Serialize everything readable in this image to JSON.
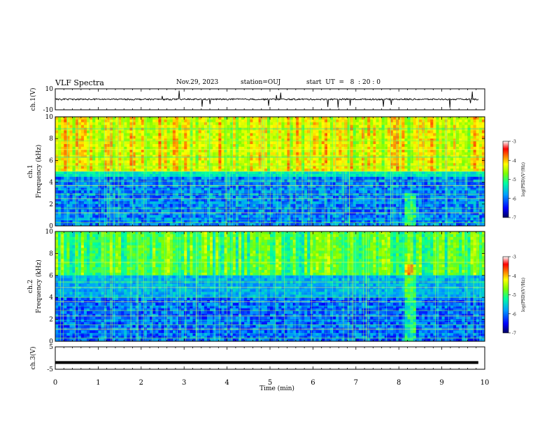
{
  "header": {
    "title": "VLF Spectra",
    "date": "Nov.29, 2023",
    "station": "station=OUJ",
    "start": "start  UT  =   8  : 20 : 0"
  },
  "chart_data": [
    {
      "type": "line",
      "panel": "ch1-waveform",
      "ylabel": "ch.1(V)",
      "ylim": [
        -10,
        10
      ],
      "yticks": [
        "10",
        "-10"
      ],
      "baseline": 0,
      "color": "#000000"
    },
    {
      "type": "heatmap",
      "panel": "ch1-spectrogram",
      "ylabel": "ch.1\nFrequency (kHz)",
      "ylabel_line1": "ch.1",
      "ylabel_line2": "Frequency (kHz)",
      "xlim": [
        0,
        10
      ],
      "ylim": [
        0,
        10
      ],
      "yticks": [
        "0",
        "2",
        "4",
        "6",
        "8",
        "10"
      ],
      "colorbar": {
        "label": "log(PSD)(V²/Hz)",
        "range": [
          -7,
          -3
        ],
        "ticks": [
          "-3",
          "-4",
          "-5",
          "-6",
          "-7"
        ],
        "colormap": [
          "#000080",
          "#0000ff",
          "#00c0ff",
          "#00ff80",
          "#c0ff00",
          "#ffff00",
          "#ff8000",
          "#ff0000",
          "#ffffff"
        ]
      }
    },
    {
      "type": "heatmap",
      "panel": "ch2-spectrogram",
      "ylabel": "ch.2\nFrequency (kHz)",
      "ylabel_line1": "ch.2",
      "ylabel_line2": "Frequency (kHz)",
      "xlim": [
        0,
        10
      ],
      "ylim": [
        0,
        10
      ],
      "yticks": [
        "0",
        "2",
        "4",
        "6",
        "8",
        "10"
      ],
      "colorbar": {
        "label": "log(PSD)(V²/Hz)",
        "range": [
          -7,
          -3
        ],
        "ticks": [
          "-3",
          "-4",
          "-5",
          "-6",
          "-7"
        ],
        "colormap": [
          "#000080",
          "#0000ff",
          "#00c0ff",
          "#00ff80",
          "#c0ff00",
          "#ffff00",
          "#ff8000",
          "#ff0000",
          "#ffffff"
        ]
      }
    },
    {
      "type": "line",
      "panel": "ch3-waveform",
      "ylabel": "ch.3(V)",
      "ylim": [
        -5,
        5
      ],
      "yticks": [
        "5",
        "-5"
      ],
      "baseline": -2,
      "xlabel": "Time (min)",
      "xlim": [
        0,
        10
      ],
      "xticks": [
        "0",
        "1",
        "2",
        "3",
        "4",
        "5",
        "6",
        "7",
        "8",
        "9",
        "10"
      ],
      "color": "#000000"
    }
  ]
}
